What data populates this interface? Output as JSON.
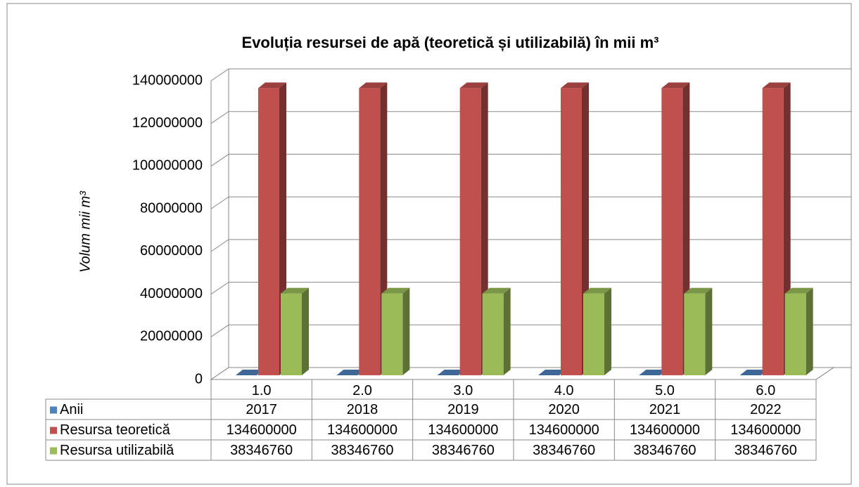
{
  "chart_data": {
    "type": "bar3d",
    "title": "Evoluția resursei de apă (teoretică și utilizabilă) în mii m³",
    "y_label": "Volum mii m³",
    "categories": [
      "1.0",
      "2.0",
      "3.0",
      "4.0",
      "5.0",
      "6.0"
    ],
    "series": [
      {
        "name": "Anii",
        "color": "#4f81bd",
        "values": [
          2017,
          2018,
          2019,
          2020,
          2021,
          2022
        ]
      },
      {
        "name": "Resursa teoretică",
        "color": "#c0504d",
        "values": [
          134600000,
          134600000,
          134600000,
          134600000,
          134600000,
          134600000
        ]
      },
      {
        "name": "Resursa utilizabilă",
        "color": "#9bbb59",
        "values": [
          38346760,
          38346760,
          38346760,
          38346760,
          38346760,
          38346760
        ]
      }
    ],
    "ylim": [
      0,
      140000000
    ],
    "yticks": [
      0,
      20000000,
      40000000,
      60000000,
      80000000,
      100000000,
      120000000,
      140000000
    ],
    "grid": true
  }
}
